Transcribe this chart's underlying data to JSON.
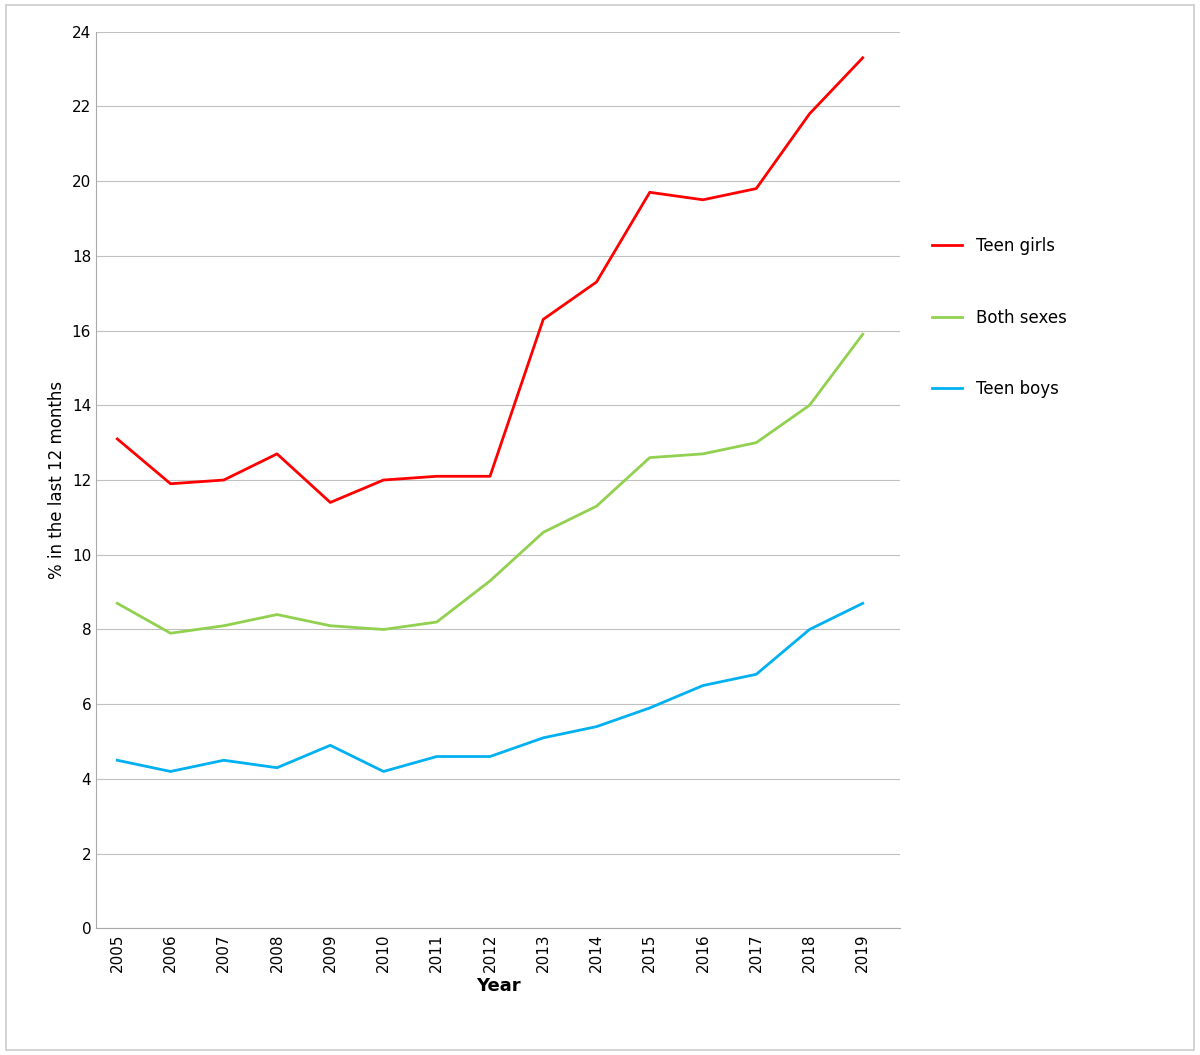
{
  "years": [
    2005,
    2006,
    2007,
    2008,
    2009,
    2010,
    2011,
    2012,
    2013,
    2014,
    2015,
    2016,
    2017,
    2018,
    2019
  ],
  "teen_girls": [
    13.1,
    11.9,
    12.0,
    12.7,
    11.4,
    12.0,
    12.1,
    12.1,
    16.3,
    17.3,
    19.7,
    19.5,
    19.8,
    21.8,
    23.3
  ],
  "both_sexes": [
    8.7,
    7.9,
    8.1,
    8.4,
    8.1,
    8.0,
    8.2,
    9.3,
    10.6,
    11.3,
    12.6,
    12.7,
    13.0,
    14.0,
    15.9
  ],
  "teen_boys": [
    4.5,
    4.2,
    4.5,
    4.3,
    4.9,
    4.2,
    4.6,
    4.6,
    5.1,
    5.4,
    5.9,
    6.5,
    6.8,
    8.0,
    8.7
  ],
  "girls_color": "#FF0000",
  "both_color": "#92D050",
  "boys_color": "#00B0F0",
  "ylabel": "% in the last 12 months",
  "xlabel": "Year",
  "ylim": [
    0,
    24
  ],
  "yticks": [
    0,
    2,
    4,
    6,
    8,
    10,
    12,
    14,
    16,
    18,
    20,
    22,
    24
  ],
  "legend_labels": [
    "Teen girls",
    "Both sexes",
    "Teen boys"
  ],
  "line_width": 2.0,
  "bg_color": "#FFFFFF",
  "grid_color": "#C0C0C0",
  "border_color": "#AAAAAA",
  "outer_border_color": "#CCCCCC"
}
